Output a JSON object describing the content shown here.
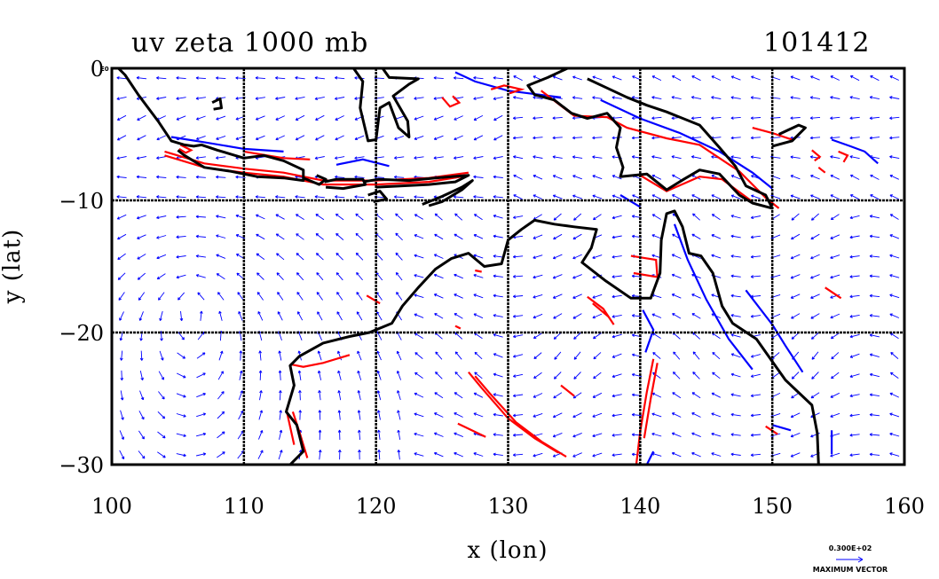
{
  "chart_data": {
    "type": "vector-contour-map",
    "title": "uv zeta 1000 mb",
    "timestamp": "101412",
    "xlabel": "x (lon)",
    "ylabel": "y (lat)",
    "xlim": [
      100,
      160
    ],
    "ylim": [
      -30,
      0
    ],
    "x_ticks": [
      100,
      110,
      120,
      130,
      140,
      150,
      160
    ],
    "x_tick_labels": [
      "100",
      "110",
      "120",
      "130",
      "140",
      "150",
      "160"
    ],
    "y_ticks": [
      0,
      -10,
      -20,
      -30
    ],
    "y_tick_labels": [
      "0",
      "−10",
      "−20",
      "−30"
    ],
    "corner_label": "E0",
    "grid": true,
    "grid_color": "#000000",
    "vector_color": "#0000ff",
    "positive_contour_color": "#ff0000",
    "negative_contour_color": "#0000ff",
    "coastline_color": "#000000",
    "legend": {
      "max_vector_value": "0.300E+02",
      "label": "MAXIMUM VECTOR",
      "placement": "bottom-right"
    },
    "coastlines": [
      [
        [
          100.5,
          0
        ],
        [
          101,
          -0.5
        ],
        [
          102,
          -2
        ],
        [
          103.5,
          -4
        ],
        [
          104.5,
          -5.5
        ],
        [
          105.5,
          -5.8
        ],
        [
          106.2,
          -5.9
        ],
        [
          106.8,
          -5.8
        ],
        [
          108,
          -6.2
        ],
        [
          110,
          -6.8
        ],
        [
          111.5,
          -6.6
        ],
        [
          113,
          -7
        ],
        [
          114.5,
          -7.7
        ],
        [
          114.5,
          -8.5
        ],
        [
          113,
          -8.3
        ],
        [
          111,
          -8.2
        ],
        [
          109,
          -7.8
        ],
        [
          107,
          -7.5
        ],
        [
          105.5,
          -6.6
        ],
        [
          105,
          -6.2
        ]
      ],
      [
        [
          114.5,
          -8.3
        ],
        [
          115.7,
          -8.8
        ],
        [
          116.2,
          -8.4
        ],
        [
          115.5,
          -8.1
        ]
      ],
      [
        [
          116.1,
          -8.6
        ],
        [
          117,
          -8.4
        ],
        [
          119,
          -8.4
        ],
        [
          119.2,
          -8.8
        ],
        [
          117.5,
          -9.1
        ],
        [
          116.2,
          -9
        ]
      ],
      [
        [
          119,
          -8.6
        ],
        [
          120.2,
          -8.4
        ],
        [
          122.5,
          -8.5
        ],
        [
          124.5,
          -8.3
        ],
        [
          127,
          -8.1
        ],
        [
          126,
          -8.6
        ],
        [
          124,
          -8.8
        ],
        [
          122,
          -8.9
        ],
        [
          120,
          -9.0
        ]
      ],
      [
        [
          119.4,
          -9.6
        ],
        [
          120.3,
          -9.3
        ],
        [
          120.8,
          -9.9
        ],
        [
          119.8,
          -10.1
        ]
      ],
      [
        [
          123.5,
          -10.3
        ],
        [
          125,
          -9.7
        ],
        [
          126.5,
          -9.0
        ],
        [
          127.3,
          -8.5
        ],
        [
          126.5,
          -9.2
        ],
        [
          125,
          -10.1
        ],
        [
          124,
          -10.4
        ]
      ],
      [
        [
          118.3,
          0
        ],
        [
          119,
          -1
        ],
        [
          118.8,
          -3
        ],
        [
          119.4,
          -5.5
        ],
        [
          120,
          -5.4
        ],
        [
          120.3,
          -3
        ],
        [
          121,
          -2.6
        ],
        [
          121.7,
          -4.5
        ],
        [
          122.5,
          -5.2
        ],
        [
          122.4,
          -4
        ],
        [
          121.3,
          -2.1
        ],
        [
          122.5,
          -1.2
        ],
        [
          123.2,
          -0.8
        ],
        [
          121,
          -0.7
        ],
        [
          120.5,
          0
        ]
      ],
      [
        [
          107.6,
          -2.6
        ],
        [
          108.2,
          -2.3
        ],
        [
          108.3,
          -3.0
        ],
        [
          107.7,
          -3.1
        ]
      ],
      [
        [
          134.5,
          0
        ],
        [
          133,
          -0.7
        ],
        [
          131.5,
          -1.3
        ],
        [
          132,
          -2
        ],
        [
          133.5,
          -2.4
        ],
        [
          134.8,
          -3.4
        ],
        [
          136,
          -3.8
        ],
        [
          137.5,
          -3.4
        ],
        [
          138.5,
          -4.5
        ],
        [
          138.2,
          -6
        ],
        [
          138.7,
          -7.5
        ],
        [
          138.5,
          -8.2
        ],
        [
          140.5,
          -8.0
        ],
        [
          142,
          -9.2
        ],
        [
          143.3,
          -8.4
        ],
        [
          144.5,
          -7.7
        ],
        [
          146,
          -8
        ],
        [
          147.5,
          -9.6
        ],
        [
          148.5,
          -10.2
        ],
        [
          150,
          -10.6
        ],
        [
          149.5,
          -9.6
        ],
        [
          148,
          -8.9
        ],
        [
          147.2,
          -7.4
        ],
        [
          146,
          -6
        ],
        [
          144.5,
          -4.3
        ],
        [
          142,
          -3.3
        ],
        [
          140.5,
          -2.8
        ],
        [
          139,
          -2.2
        ],
        [
          137.5,
          -1.5
        ],
        [
          136,
          -0.8
        ]
      ],
      [
        [
          150,
          -5.9
        ],
        [
          151.5,
          -5.5
        ],
        [
          152.5,
          -4.5
        ],
        [
          152,
          -4.3
        ],
        [
          150.5,
          -5
        ]
      ],
      [
        [
          113.5,
          -30
        ],
        [
          114.5,
          -29
        ],
        [
          114,
          -27
        ],
        [
          113.2,
          -26
        ],
        [
          113.8,
          -24
        ],
        [
          113.5,
          -22.5
        ],
        [
          114.2,
          -21.8
        ],
        [
          116,
          -20.8
        ],
        [
          118,
          -20.3
        ],
        [
          119.5,
          -20
        ],
        [
          121.2,
          -19.3
        ],
        [
          122,
          -18
        ],
        [
          123.2,
          -16.6
        ],
        [
          124.5,
          -15.2
        ],
        [
          125.7,
          -14.4
        ],
        [
          127,
          -14
        ],
        [
          128.2,
          -15
        ],
        [
          129.5,
          -14.8
        ],
        [
          130,
          -13
        ],
        [
          131,
          -12.2
        ],
        [
          132,
          -11.5
        ],
        [
          133.5,
          -11.8
        ],
        [
          135,
          -12
        ],
        [
          136.7,
          -12.2
        ],
        [
          136.3,
          -13.6
        ],
        [
          135.6,
          -14.7
        ],
        [
          137.4,
          -16.1
        ],
        [
          139.3,
          -17.4
        ],
        [
          140.8,
          -17.4
        ],
        [
          141.5,
          -15.5
        ],
        [
          141.6,
          -13
        ],
        [
          142,
          -11
        ],
        [
          142.6,
          -10.8
        ],
        [
          143.2,
          -12
        ],
        [
          143.7,
          -14
        ],
        [
          144.6,
          -14.2
        ],
        [
          145.5,
          -15.5
        ],
        [
          146.2,
          -18
        ],
        [
          147,
          -19.3
        ],
        [
          148.8,
          -20.5
        ],
        [
          150,
          -22.2
        ],
        [
          151,
          -23.6
        ],
        [
          153,
          -25.5
        ],
        [
          153.4,
          -27.6
        ],
        [
          153.5,
          -30
        ]
      ]
    ],
    "positive_zeta_contours": [
      [
        [
          105.2,
          -5.8
        ],
        [
          105.6,
          -6.0
        ],
        [
          106.0,
          -6.2
        ],
        [
          105.6,
          -6.4
        ],
        [
          105.1,
          -6.1
        ]
      ],
      [
        [
          104,
          -6.3
        ],
        [
          107,
          -7.2
        ],
        [
          110,
          -7.6
        ],
        [
          113,
          -7.9
        ],
        [
          116,
          -8.5
        ],
        [
          120,
          -8.5
        ],
        [
          124,
          -8.3
        ],
        [
          127,
          -7.9
        ]
      ],
      [
        [
          104,
          -6.6
        ],
        [
          107,
          -7.5
        ],
        [
          110,
          -7.9
        ],
        [
          113,
          -8.2
        ],
        [
          116,
          -8.8
        ],
        [
          120,
          -8.8
        ],
        [
          124,
          -8.6
        ],
        [
          126.5,
          -8.2
        ]
      ],
      [
        [
          110,
          -6.3
        ],
        [
          113,
          -6.8
        ],
        [
          115,
          -6.9
        ]
      ],
      [
        [
          125,
          -2.2
        ],
        [
          125.6,
          -2.9
        ],
        [
          126.3,
          -2.6
        ],
        [
          125.8,
          -2.1
        ]
      ],
      [
        [
          128.7,
          -1.6
        ],
        [
          129.7,
          -1.3
        ],
        [
          131,
          -1.6
        ],
        [
          130.1,
          -1.9
        ]
      ],
      [
        [
          132.5,
          -1.7
        ],
        [
          135,
          -3.6
        ],
        [
          137.5,
          -3.7
        ],
        [
          139,
          -4.5
        ],
        [
          142,
          -5.3
        ],
        [
          144.5,
          -5.8
        ],
        [
          147.5,
          -7.8
        ],
        [
          149.5,
          -9.8
        ],
        [
          150.5,
          -10.6
        ]
      ],
      [
        [
          140,
          -8.1
        ],
        [
          142,
          -9.3
        ],
        [
          144.5,
          -8.2
        ],
        [
          146.2,
          -8.4
        ],
        [
          148.5,
          -10.1
        ]
      ],
      [
        [
          148.5,
          -4.5
        ],
        [
          150,
          -4.9
        ],
        [
          151.5,
          -5.4
        ]
      ],
      [
        [
          153,
          -6.2
        ],
        [
          153.6,
          -6.7
        ],
        [
          153.2,
          -7.0
        ]
      ],
      [
        [
          155,
          -6.3
        ],
        [
          155.7,
          -6.6
        ],
        [
          155.4,
          -7.1
        ]
      ],
      [
        [
          153.5,
          -7.5
        ],
        [
          154,
          -7.9
        ]
      ],
      [
        [
          139.3,
          -14.2
        ],
        [
          141.2,
          -14.5
        ],
        [
          141.3,
          -15.8
        ],
        [
          139.5,
          -15.5
        ]
      ],
      [
        [
          136,
          -17.3
        ],
        [
          137.2,
          -18.2
        ],
        [
          138,
          -19.4
        ],
        [
          137.6,
          -18.8
        ],
        [
          136.4,
          -17.8
        ]
      ],
      [
        [
          127.5,
          -15.3
        ],
        [
          128,
          -15.4
        ]
      ],
      [
        [
          126,
          -19.5
        ],
        [
          126.4,
          -19.7
        ]
      ],
      [
        [
          119.3,
          -17.2
        ],
        [
          120.3,
          -17.8
        ]
      ],
      [
        [
          113.5,
          -22.4
        ],
        [
          114.5,
          -22.6
        ],
        [
          116,
          -22.3
        ],
        [
          118,
          -21.7
        ]
      ],
      [
        [
          113.7,
          -26
        ],
        [
          114.2,
          -27.5
        ],
        [
          114.8,
          -29.5
        ]
      ],
      [
        [
          113.2,
          -25.8
        ],
        [
          113.8,
          -28.5
        ]
      ],
      [
        [
          126.2,
          -26.9
        ],
        [
          128.3,
          -27.9
        ]
      ],
      [
        [
          127,
          -23
        ],
        [
          128,
          -24.2
        ],
        [
          130,
          -26.5
        ],
        [
          132,
          -28
        ],
        [
          133.8,
          -29.1
        ]
      ],
      [
        [
          127.5,
          -23.3
        ],
        [
          128.6,
          -24.6
        ],
        [
          130.6,
          -26.8
        ],
        [
          132.6,
          -28.3
        ],
        [
          134.4,
          -29.4
        ]
      ],
      [
        [
          141,
          -22
        ],
        [
          140.5,
          -24.5
        ],
        [
          140,
          -27.5
        ],
        [
          139.7,
          -30
        ]
      ],
      [
        [
          141.3,
          -22.3
        ],
        [
          140.8,
          -25
        ],
        [
          140.3,
          -28
        ]
      ],
      [
        [
          134,
          -24
        ],
        [
          135,
          -24.8
        ]
      ],
      [
        [
          154,
          -16.6
        ],
        [
          155.2,
          -17.4
        ]
      ],
      [
        [
          149.5,
          -27.1
        ],
        [
          150.4,
          -27.7
        ]
      ]
    ],
    "negative_zeta_contours": [
      [
        [
          104.5,
          -5.2
        ],
        [
          107,
          -5.6
        ],
        [
          110,
          -6.1
        ],
        [
          113,
          -6.3
        ]
      ],
      [
        [
          117,
          -7.3
        ],
        [
          119,
          -6.9
        ],
        [
          121,
          -7.4
        ]
      ],
      [
        [
          126,
          -0.3
        ],
        [
          127.5,
          -1.0
        ],
        [
          130,
          -1.7
        ],
        [
          134,
          -2.2
        ]
      ],
      [
        [
          137,
          -2.4
        ],
        [
          140,
          -3.8
        ],
        [
          143,
          -4.9
        ],
        [
          146,
          -6.3
        ],
        [
          148.5,
          -7.9
        ],
        [
          150,
          -9.1
        ]
      ],
      [
        [
          154.5,
          -5.4
        ],
        [
          155.9,
          -5.9
        ],
        [
          157,
          -6.3
        ],
        [
          158,
          -7.2
        ]
      ],
      [
        [
          138.5,
          -9.6
        ],
        [
          140,
          -10.5
        ]
      ],
      [
        [
          140.2,
          -18.3
        ],
        [
          141,
          -19.8
        ],
        [
          140.4,
          -21.5
        ]
      ],
      [
        [
          142.6,
          -11.8
        ],
        [
          143.6,
          -14.5
        ],
        [
          145,
          -17.5
        ],
        [
          146.7,
          -20.5
        ],
        [
          148.5,
          -22.8
        ]
      ],
      [
        [
          148,
          -16.8
        ],
        [
          150,
          -19.4
        ],
        [
          151,
          -21
        ],
        [
          152.3,
          -23
        ]
      ],
      [
        [
          150,
          -27
        ],
        [
          151.4,
          -27.4
        ]
      ],
      [
        [
          154.5,
          -27.4
        ],
        [
          154.5,
          -29.2
        ]
      ],
      [
        [
          141,
          -29
        ],
        [
          140.5,
          -30
        ]
      ]
    ]
  }
}
